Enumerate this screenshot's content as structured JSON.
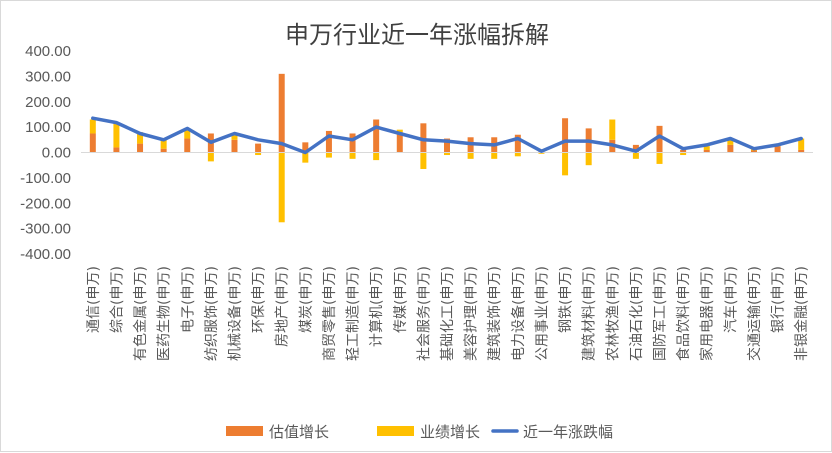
{
  "chart_data": {
    "type": "bar",
    "title": "申万行业近一年涨幅拆解",
    "xlabel": "",
    "ylabel": "",
    "ylim": [
      -400,
      400
    ],
    "yticks": [
      "400.00",
      "300.00",
      "200.00",
      "100.00",
      "0.00",
      "-100.00",
      "-200.00",
      "-300.00",
      "-400.00"
    ],
    "grid": false,
    "legend": "bottom",
    "stacked": true,
    "categories": [
      "通信(申万)",
      "综合(申万)",
      "有色金属(申万)",
      "医药生物(申万)",
      "电子(申万)",
      "纺织服饰(申万)",
      "机械设备(申万)",
      "环保(申万)",
      "房地产(申万)",
      "煤炭(申万)",
      "商贸零售(申万)",
      "轻工制造(申万)",
      "计算机(申万)",
      "传媒(申万)",
      "社会服务(申万)",
      "基础化工(申万)",
      "美容护理(申万)",
      "建筑装饰(申万)",
      "电力设备(申万)",
      "公用事业(申万)",
      "钢铁(申万)",
      "建筑材料(申万)",
      "农林牧渔(申万)",
      "石油石化(申万)",
      "国防军工(申万)",
      "食品饮料(申万)",
      "家用电器(申万)",
      "汽车(申万)",
      "交通运输(申万)",
      "银行(申万)",
      "非银金融(申万)"
    ],
    "series": [
      {
        "name": "估值增长",
        "type": "bar",
        "color": "#ed7d31",
        "values": [
          75,
          20,
          35,
          15,
          55,
          75,
          50,
          35,
          310,
          40,
          85,
          75,
          130,
          80,
          115,
          55,
          60,
          60,
          70,
          5,
          135,
          95,
          50,
          30,
          105,
          10,
          10,
          30,
          8,
          25,
          10
        ]
      },
      {
        "name": "业绩增长",
        "type": "bar",
        "color": "#ffc000",
        "values": [
          55,
          95,
          45,
          35,
          40,
          -35,
          25,
          -10,
          -275,
          -40,
          -20,
          -25,
          -30,
          10,
          -65,
          -10,
          -25,
          -25,
          -15,
          -5,
          -90,
          -50,
          80,
          -25,
          -45,
          -10,
          15,
          25,
          5,
          10,
          45
        ]
      },
      {
        "name": "近一年涨跌幅",
        "type": "line",
        "color": "#4472c4",
        "values": [
          135,
          118,
          75,
          50,
          95,
          40,
          75,
          50,
          35,
          0,
          65,
          50,
          100,
          75,
          50,
          45,
          35,
          30,
          55,
          5,
          45,
          45,
          30,
          5,
          65,
          15,
          30,
          55,
          15,
          30,
          55
        ]
      }
    ]
  }
}
